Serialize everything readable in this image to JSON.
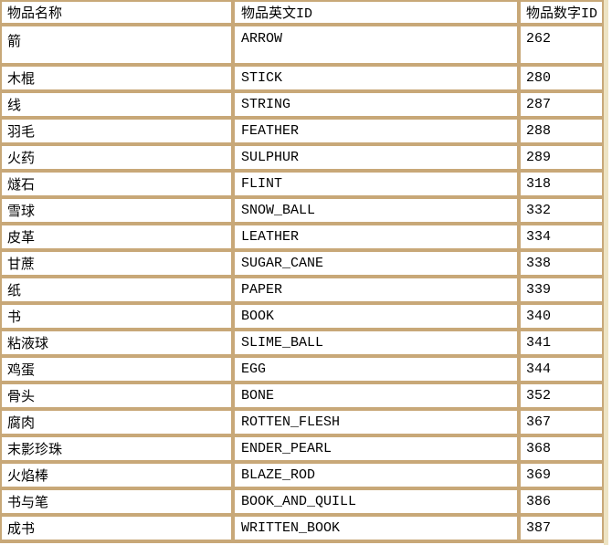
{
  "table": {
    "columns": [
      "物品名称",
      "物品英文ID",
      "物品数字ID"
    ],
    "rows": [
      {
        "name": "箭",
        "en": "ARROW",
        "id": "262"
      },
      {
        "name": "木棍",
        "en": "STICK",
        "id": "280"
      },
      {
        "name": "线",
        "en": "STRING",
        "id": "287"
      },
      {
        "name": "羽毛",
        "en": "FEATHER",
        "id": "288"
      },
      {
        "name": "火药",
        "en": "SULPHUR",
        "id": "289"
      },
      {
        "name": "燧石",
        "en": "FLINT",
        "id": "318"
      },
      {
        "name": "雪球",
        "en": "SNOW_BALL",
        "id": "332"
      },
      {
        "name": "皮革",
        "en": "LEATHER",
        "id": "334"
      },
      {
        "name": "甘蔗",
        "en": "SUGAR_CANE",
        "id": "338"
      },
      {
        "name": "纸",
        "en": "PAPER",
        "id": "339"
      },
      {
        "name": "书",
        "en": "BOOK",
        "id": "340"
      },
      {
        "name": "粘液球",
        "en": "SLIME_BALL",
        "id": "341"
      },
      {
        "name": "鸡蛋",
        "en": "EGG",
        "id": "344"
      },
      {
        "name": "骨头",
        "en": "BONE",
        "id": "352"
      },
      {
        "name": "腐肉",
        "en": "ROTTEN_FLESH",
        "id": "367"
      },
      {
        "name": "末影珍珠",
        "en": "ENDER_PEARL",
        "id": "368"
      },
      {
        "name": "火焰棒",
        "en": "BLAZE_ROD",
        "id": "369"
      },
      {
        "name": "书与笔",
        "en": "BOOK_AND_QUILL",
        "id": "386"
      },
      {
        "name": "成书",
        "en": "WRITTEN_BOOK",
        "id": "387"
      }
    ]
  },
  "colors": {
    "border": "#C8A878",
    "cell_background": "#FFFFFF",
    "right_strip": "#EDE3C3",
    "text": "#000000"
  }
}
